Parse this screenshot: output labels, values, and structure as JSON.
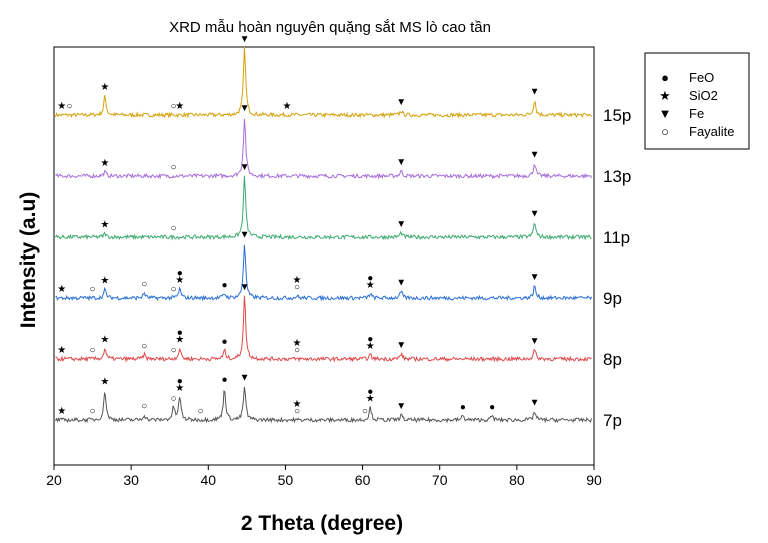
{
  "chart_data": {
    "type": "line",
    "title": "XRD mẫu hoàn nguyên quặng sắt MS  lò cao tần",
    "xlabel": "2 Theta (degree)",
    "ylabel": "Intensity (a.u)",
    "xlim": [
      20,
      90
    ],
    "xticks": [
      "20",
      "30",
      "40",
      "50",
      "60",
      "70",
      "80",
      "90"
    ],
    "grid": false,
    "legend_position": "top-right outside",
    "legend": [
      {
        "symbol": "FeO",
        "glyph": "●",
        "label": "FeO"
      },
      {
        "symbol": "SiO2",
        "glyph": "★",
        "label": "SiO2"
      },
      {
        "symbol": "Fe",
        "glyph": "▼",
        "label": "Fe"
      },
      {
        "symbol": "Fayalite",
        "glyph": "○",
        "label": "Fayalite"
      }
    ],
    "series": [
      {
        "name": "15p",
        "color": "#d4a10c",
        "offset": 5,
        "peaks": [
          [
            26.6,
            0.45
          ],
          [
            44.7,
            1.6
          ],
          [
            65.0,
            0.1
          ],
          [
            82.3,
            0.35
          ]
        ],
        "markers": [
          [
            {
              "x": 21.0,
              "s": [
                "SiO2"
              ]
            },
            {
              "x": 22.0,
              "s": [
                "Fayalite"
              ]
            },
            {
              "x": 26.6,
              "s": [
                "SiO2"
              ]
            },
            {
              "x": 35.5,
              "s": [
                "Fayalite"
              ]
            },
            {
              "x": 36.3,
              "s": [
                "SiO2"
              ]
            },
            {
              "x": 44.7,
              "s": [
                "Fe"
              ]
            },
            {
              "x": 50.2,
              "s": [
                "SiO2"
              ]
            },
            {
              "x": 65.0,
              "s": [
                "Fe"
              ]
            },
            {
              "x": 82.3,
              "s": [
                "Fe"
              ]
            }
          ]
        ]
      },
      {
        "name": "13p",
        "color": "#a86fd8",
        "offset": 4,
        "peaks": [
          [
            26.6,
            0.1
          ],
          [
            44.7,
            1.4
          ],
          [
            65.0,
            0.12
          ],
          [
            82.3,
            0.3
          ]
        ],
        "markers": [
          [
            {
              "x": 26.6,
              "s": [
                "SiO2"
              ]
            },
            {
              "x": 35.5,
              "s": [
                "Fayalite"
              ]
            },
            {
              "x": 44.7,
              "s": [
                "Fe"
              ]
            },
            {
              "x": 65.0,
              "s": [
                "Fe"
              ]
            },
            {
              "x": 82.3,
              "s": [
                "Fe"
              ]
            }
          ]
        ]
      },
      {
        "name": "11p",
        "color": "#3daa70",
        "offset": 3,
        "peaks": [
          [
            26.6,
            0.08
          ],
          [
            44.7,
            1.45
          ],
          [
            65.0,
            0.1
          ],
          [
            82.3,
            0.35
          ]
        ],
        "markers": [
          [
            {
              "x": 26.6,
              "s": [
                "SiO2"
              ]
            },
            {
              "x": 35.5,
              "s": [
                "Fayalite"
              ]
            },
            {
              "x": 44.7,
              "s": [
                "Fe"
              ]
            },
            {
              "x": 65.0,
              "s": [
                "Fe"
              ]
            },
            {
              "x": 82.3,
              "s": [
                "Fe"
              ]
            }
          ]
        ]
      },
      {
        "name": "9p",
        "color": "#2a6fd6",
        "offset": 2,
        "peaks": [
          [
            26.6,
            0.2
          ],
          [
            31.7,
            0.12
          ],
          [
            36.3,
            0.22
          ],
          [
            42.1,
            0.1
          ],
          [
            44.7,
            1.3
          ],
          [
            51.5,
            0.05
          ],
          [
            61.0,
            0.1
          ],
          [
            65.0,
            0.15
          ],
          [
            82.3,
            0.28
          ]
        ],
        "markers": [
          [
            {
              "x": 21.0,
              "s": [
                "SiO2"
              ]
            },
            {
              "x": 25.0,
              "s": [
                "Fayalite"
              ]
            },
            {
              "x": 26.6,
              "s": [
                "SiO2"
              ]
            },
            {
              "x": 31.7,
              "s": [
                "Fayalite"
              ]
            },
            {
              "x": 35.5,
              "s": [
                "Fayalite"
              ]
            },
            {
              "x": 36.3,
              "s": [
                "SiO2",
                "FeO"
              ]
            },
            {
              "x": 42.1,
              "s": [
                "FeO"
              ]
            },
            {
              "x": 44.7,
              "s": [
                "Fe"
              ]
            },
            {
              "x": 51.5,
              "s": [
                "Fayalite",
                "SiO2"
              ]
            },
            {
              "x": 61.0,
              "s": [
                "SiO2",
                "FeO"
              ]
            },
            {
              "x": 65.0,
              "s": [
                "Fe"
              ]
            },
            {
              "x": 82.3,
              "s": [
                "Fe"
              ]
            }
          ]
        ]
      },
      {
        "name": "8p",
        "color": "#e0484a",
        "offset": 1,
        "peaks": [
          [
            26.6,
            0.25
          ],
          [
            31.7,
            0.1
          ],
          [
            36.3,
            0.25
          ],
          [
            42.1,
            0.2
          ],
          [
            44.7,
            1.5
          ],
          [
            61.0,
            0.1
          ],
          [
            65.0,
            0.12
          ],
          [
            82.3,
            0.22
          ]
        ],
        "markers": [
          [
            {
              "x": 21.0,
              "s": [
                "SiO2"
              ]
            },
            {
              "x": 25.0,
              "s": [
                "Fayalite"
              ]
            },
            {
              "x": 26.6,
              "s": [
                "SiO2"
              ]
            },
            {
              "x": 31.7,
              "s": [
                "Fayalite"
              ]
            },
            {
              "x": 35.5,
              "s": [
                "Fayalite"
              ]
            },
            {
              "x": 36.3,
              "s": [
                "SiO2",
                "FeO"
              ]
            },
            {
              "x": 42.1,
              "s": [
                "FeO"
              ]
            },
            {
              "x": 44.7,
              "s": [
                "Fe"
              ]
            },
            {
              "x": 51.5,
              "s": [
                "Fayalite",
                "SiO2"
              ]
            },
            {
              "x": 61.0,
              "s": [
                "SiO2",
                "FeO"
              ]
            },
            {
              "x": 65.0,
              "s": [
                "Fe"
              ]
            },
            {
              "x": 82.3,
              "s": [
                "Fe"
              ]
            }
          ]
        ]
      },
      {
        "name": "7p",
        "color": "#555555",
        "offset": 0,
        "peaks": [
          [
            26.6,
            0.7
          ],
          [
            31.7,
            0.12
          ],
          [
            35.5,
            0.3
          ],
          [
            36.3,
            0.55
          ],
          [
            42.1,
            0.75
          ],
          [
            44.7,
            0.8
          ],
          [
            61.0,
            0.3
          ],
          [
            65.0,
            0.12
          ],
          [
            73.0,
            0.1
          ],
          [
            76.8,
            0.1
          ],
          [
            82.3,
            0.2
          ]
        ],
        "markers": [
          [
            {
              "x": 21.0,
              "s": [
                "SiO2"
              ]
            },
            {
              "x": 25.0,
              "s": [
                "Fayalite"
              ]
            },
            {
              "x": 26.6,
              "s": [
                "SiO2"
              ]
            },
            {
              "x": 31.7,
              "s": [
                "Fayalite"
              ]
            },
            {
              "x": 35.5,
              "s": [
                "Fayalite"
              ]
            },
            {
              "x": 36.3,
              "s": [
                "SiO2",
                "FeO"
              ]
            },
            {
              "x": 39.0,
              "s": [
                "Fayalite"
              ]
            },
            {
              "x": 42.1,
              "s": [
                "FeO"
              ]
            },
            {
              "x": 44.7,
              "s": [
                "Fe"
              ]
            },
            {
              "x": 51.5,
              "s": [
                "Fayalite",
                "SiO2"
              ]
            },
            {
              "x": 60.3,
              "s": [
                "Fayalite"
              ]
            },
            {
              "x": 61.0,
              "s": [
                "SiO2",
                "FeO"
              ]
            },
            {
              "x": 65.0,
              "s": [
                "Fe"
              ]
            },
            {
              "x": 73.0,
              "s": [
                "FeO"
              ]
            },
            {
              "x": 76.8,
              "s": [
                "FeO"
              ]
            },
            {
              "x": 82.3,
              "s": [
                "Fe"
              ]
            }
          ]
        ]
      }
    ]
  }
}
